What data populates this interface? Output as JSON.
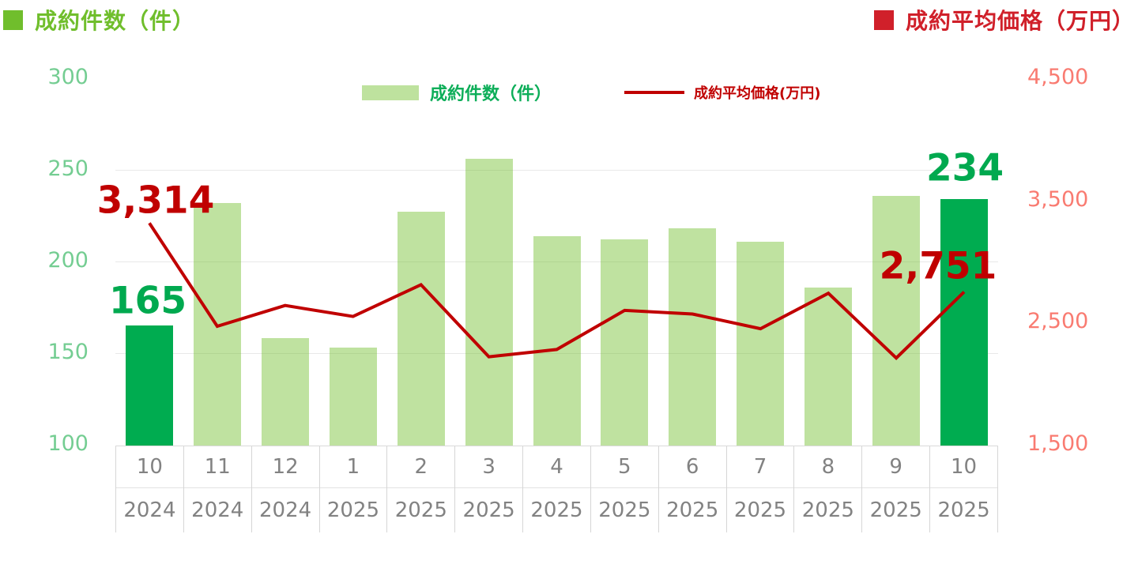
{
  "header": {
    "left_title": "成約件数（件）",
    "right_title": "成約平均価格（万円）"
  },
  "legend": {
    "bar_label": "成約件数（件）",
    "line_label": "成約平均価格(万円)"
  },
  "colors": {
    "title_green": "#70BE2C",
    "title_red": "#D0202A",
    "bar_light_fill": "rgba(112,190,44,0.45)",
    "bar_light_solid": "#BEE29E",
    "bar_dark": "#00AC50",
    "annotation_green": "#00A94F",
    "legend_green_text": "#0DAE59",
    "line_red": "#C00000",
    "left_axis_text": "#74CD92",
    "right_axis_text": "#F97B71",
    "x_axis_text": "#828282",
    "gridline": "#E8E8E8"
  },
  "chart_data": {
    "type": "combo-bar-line",
    "categories": [
      {
        "month": "10",
        "year": "2024"
      },
      {
        "month": "11",
        "year": "2024"
      },
      {
        "month": "12",
        "year": "2024"
      },
      {
        "month": "1",
        "year": "2025"
      },
      {
        "month": "2",
        "year": "2025"
      },
      {
        "month": "3",
        "year": "2025"
      },
      {
        "month": "4",
        "year": "2025"
      },
      {
        "month": "5",
        "year": "2025"
      },
      {
        "month": "6",
        "year": "2025"
      },
      {
        "month": "7",
        "year": "2025"
      },
      {
        "month": "8",
        "year": "2025"
      },
      {
        "month": "9",
        "year": "2025"
      },
      {
        "month": "10",
        "year": "2025"
      }
    ],
    "series": [
      {
        "name": "成約件数（件）",
        "type": "bar",
        "axis": "left",
        "values": [
          165,
          232,
          158,
          153,
          227,
          256,
          214,
          212,
          218,
          211,
          186,
          236,
          234
        ],
        "highlight_indices": [
          0,
          12
        ]
      },
      {
        "name": "成約平均価格(万円)",
        "type": "line",
        "axis": "right",
        "values": [
          3314,
          2470,
          2640,
          2550,
          2810,
          2220,
          2280,
          2600,
          2570,
          2450,
          2740,
          2210,
          2751
        ]
      }
    ],
    "left_axis": {
      "range": [
        100,
        300
      ],
      "ticks": [
        {
          "label": "300",
          "value": 300
        },
        {
          "label": "250",
          "value": 250
        },
        {
          "label": "200",
          "value": 200
        },
        {
          "label": "150",
          "value": 150
        },
        {
          "label": "100",
          "value": 100
        }
      ]
    },
    "right_axis": {
      "range": [
        1500,
        4500
      ],
      "ticks": [
        {
          "label": "4,500",
          "value": 4500
        },
        {
          "label": "3,500",
          "value": 3500
        },
        {
          "label": "2,500",
          "value": 2500
        },
        {
          "label": "1,500",
          "value": 1500
        }
      ]
    },
    "gridline_values": [
      250,
      200,
      150
    ],
    "annotations": [
      {
        "text": "3,314",
        "series": "line",
        "index": 0,
        "color": "red"
      },
      {
        "text": "165",
        "series": "bar",
        "index": 0,
        "color": "green"
      },
      {
        "text": "234",
        "series": "bar",
        "index": 12,
        "color": "green"
      },
      {
        "text": "2,751",
        "series": "line",
        "index": 12,
        "color": "red"
      }
    ],
    "legend_position": "top-center",
    "grid": "horizontal-only"
  }
}
